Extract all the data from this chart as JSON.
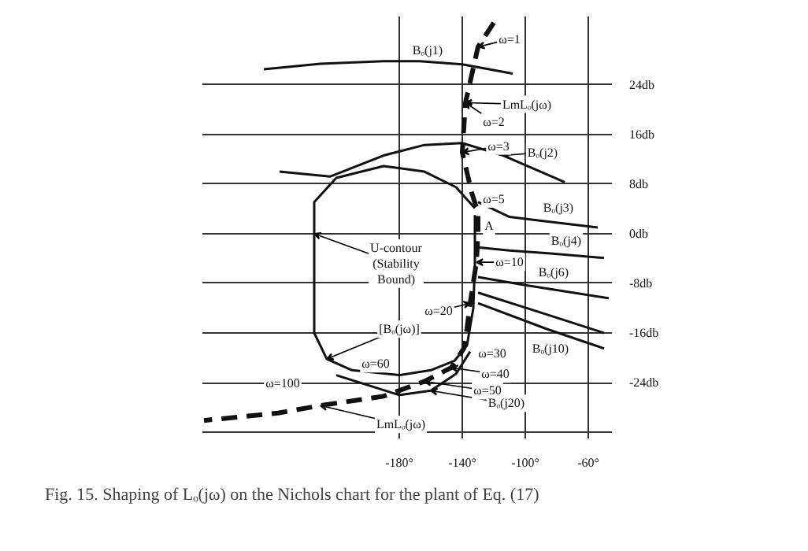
{
  "chart_data": {
    "type": "line",
    "title": "Fig. 15. Shaping of Lₒ(jω) on the Nichols chart for the plant of Eq. (17)",
    "xlim": [
      -305,
      -45
    ],
    "ylim": [
      -33,
      35
    ],
    "xticks": [
      {
        "value": -180,
        "label": "-180°"
      },
      {
        "value": -140,
        "label": "-140°"
      },
      {
        "value": -100,
        "label": "-100°"
      },
      {
        "value": -60,
        "label": "-60°"
      }
    ],
    "yticks": [
      {
        "value": -32,
        "label": null
      },
      {
        "value": -24,
        "label": "-24db"
      },
      {
        "value": -16,
        "label": "-16db"
      },
      {
        "value": -8,
        "label": "-8db"
      },
      {
        "value": 0,
        "label": "0db"
      },
      {
        "value": 8,
        "label": "8db"
      },
      {
        "value": 16,
        "label": "16db"
      },
      {
        "value": 24,
        "label": "24db"
      }
    ],
    "grid": true,
    "series": [
      {
        "color": "#111111",
        "x": [
          -266,
          -230,
          -190,
          -167,
          -140,
          -108
        ],
        "values": [
          26.5,
          27.4,
          27.8,
          27.8,
          27.3,
          25.8
        ]
      },
      {
        "color": "#111111",
        "x": [
          -256,
          -224,
          -190,
          -164,
          -140,
          -114,
          -75
        ],
        "values": [
          10.0,
          9.2,
          12.6,
          14.3,
          14.6,
          12.6,
          8.3
        ]
      },
      {
        "color": "#111111",
        "x": [
          -130,
          -110,
          -94,
          -54
        ],
        "values": [
          5.1,
          2.7,
          2.2,
          1.0
        ]
      },
      {
        "color": "#111111",
        "x": [
          -130,
          -110,
          -84,
          -50
        ],
        "values": [
          -2.2,
          -2.7,
          -3.2,
          -3.9
        ]
      },
      {
        "color": "#111111",
        "x": [
          -130,
          -100,
          -47
        ],
        "values": [
          -7.0,
          -8.3,
          -10.4
        ]
      },
      {
        "color": "#111111",
        "x": [
          -130,
          -94,
          -50
        ],
        "values": [
          -9.5,
          -12.4,
          -16.0
        ]
      },
      {
        "color": "#111111",
        "x": [
          -130,
          -87,
          -50
        ],
        "values": [
          -11.2,
          -15.3,
          -18.5
        ]
      },
      {
        "color": "#111111",
        "x": [
          -132,
          -132,
          -133,
          -137,
          -145,
          -160,
          -180,
          -210,
          -226,
          -234,
          -234,
          -234,
          -220,
          -190,
          -164,
          -144,
          -132
        ],
        "values": [
          3,
          -5,
          -12,
          -18,
          -20.5,
          -22,
          -22.8,
          -22,
          -20.2,
          -16,
          0,
          5.1,
          9.0,
          10.9,
          10.0,
          7.5,
          4.1
        ]
      },
      {
        "color": "#111111",
        "x": [
          -220,
          -180,
          -160,
          -144,
          -135
        ],
        "values": [
          -22.8,
          -26,
          -25.3,
          -22.6,
          -19
        ]
      },
      {
        "color": "#111111",
        "line_style": "dashed",
        "x": [
          -120,
          -130,
          -138,
          -140,
          -134,
          -130,
          -130,
          -131,
          -135,
          -137,
          -139,
          -147,
          -164,
          -190,
          -230,
          -257,
          -304
        ],
        "values": [
          34,
          30.1,
          21.1,
          13.1,
          6.6,
          3.4,
          0.2,
          -4.6,
          -11.2,
          -15.3,
          -18.5,
          -21.6,
          -23.8,
          -26.2,
          -27.7,
          -28.9,
          -30.1
        ]
      }
    ],
    "annotations": [
      {
        "text": "Bₒ(j1)",
        "x": -167,
        "y": 27.8
      },
      {
        "text": "ω=1",
        "x": -130,
        "y": 30.1
      },
      {
        "text": "LmLₒ(jω)",
        "x": -138,
        "y": 21.1
      },
      {
        "text": "ω=2",
        "x": -138,
        "y": 21.1
      },
      {
        "text": "ω=3",
        "x": -140,
        "y": 13.1
      },
      {
        "text": "Bₒ(j2)",
        "x": -114,
        "y": 12.6
      },
      {
        "text": "ω=5",
        "x": -134,
        "y": 6.6
      },
      {
        "text": "Bₒ(j3)",
        "x": -94,
        "y": 2.2
      },
      {
        "text": "A",
        "x": -130,
        "y": 0.2
      },
      {
        "text": "Bₒ(j4)",
        "x": -84,
        "y": -3.2
      },
      {
        "text": "U-contour\n(Stability\nBound)",
        "x": -234,
        "y": 0
      },
      {
        "text": "ω=10",
        "x": -131,
        "y": -4.6
      },
      {
        "text": "Bₒ(j6)",
        "x": -100,
        "y": -8.3
      },
      {
        "text": "ω=20",
        "x": -135,
        "y": -11.2
      },
      {
        "text": "[Bₒ(jω)]",
        "x": -226,
        "y": -20.2
      },
      {
        "text": "Bₒ(j10)",
        "x": -87,
        "y": -15.3
      },
      {
        "text": "ω=30",
        "x": -139,
        "y": -18.5
      },
      {
        "text": "ω=60",
        "x": -210,
        "y": -22
      },
      {
        "text": "ω=40",
        "x": -147,
        "y": -21.6
      },
      {
        "text": "ω=100",
        "x": -257,
        "y": -28.9
      },
      {
        "text": "ω=50",
        "x": -164,
        "y": -23.8
      },
      {
        "text": "Bₒ(j20)",
        "x": -160,
        "y": -25.3
      },
      {
        "text": "LmLₒ(jω)",
        "x": -230,
        "y": -27.7
      }
    ]
  }
}
